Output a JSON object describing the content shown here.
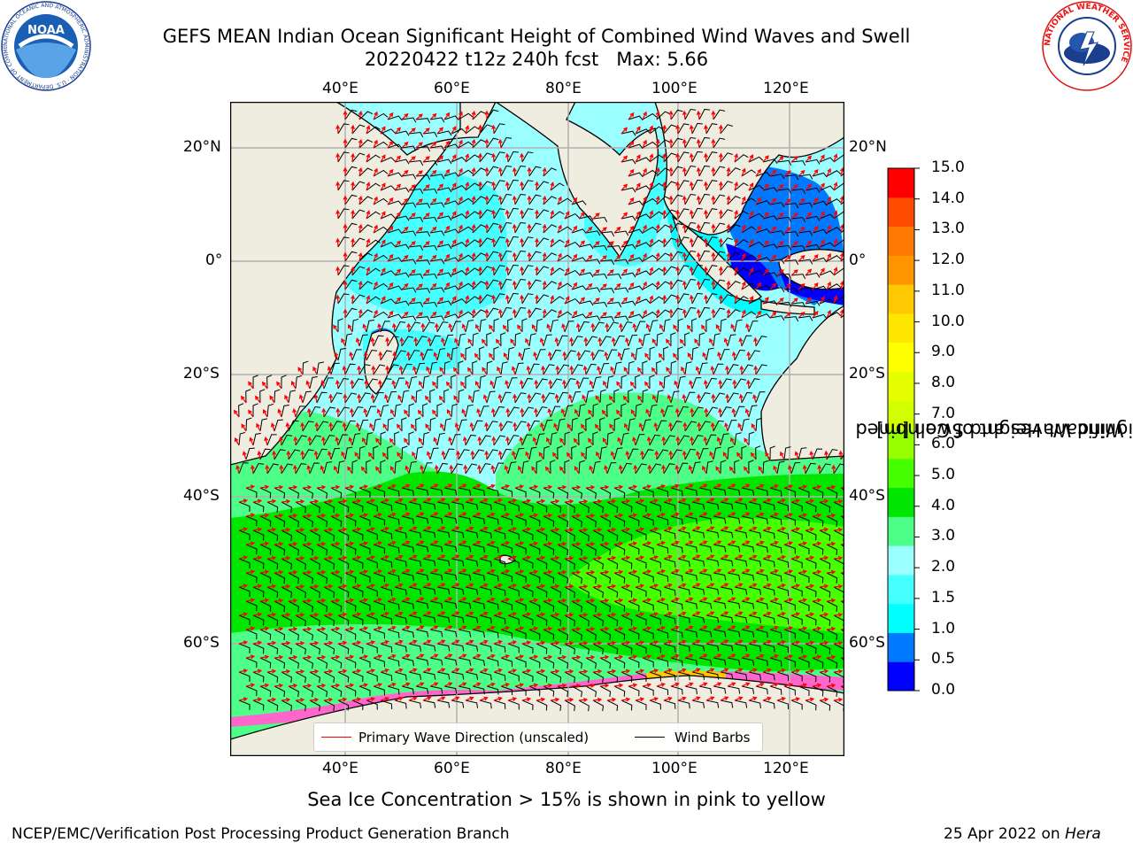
{
  "title": {
    "line1": "GEFS MEAN Indian Ocean Significant Height of Combined Wind Waves and Swell",
    "line2": "20220422 t12z 240h fcst   Max: 5.66"
  },
  "map": {
    "lon_labels": [
      "40°E",
      "60°E",
      "80°E",
      "100°E",
      "120°E"
    ],
    "lat_labels_left": [
      "20°N",
      "0°",
      "20°S",
      "40°S",
      "60°S"
    ],
    "lat_labels_right": [
      "20°N",
      "0°",
      "20°S",
      "40°S",
      "60°S"
    ],
    "land_color": "#efede0",
    "grid_color": "#b0b0b0"
  },
  "colorbar": {
    "title_line1": "Significant Height of Combined",
    "title_line2": "Wind Waves and Swell [m]",
    "ticks": [
      "15.0",
      "14.0",
      "13.0",
      "12.0",
      "11.0",
      "10.0",
      "9.0",
      "8.0",
      "7.0",
      "6.0",
      "5.0",
      "4.0",
      "3.0",
      "2.0",
      "1.5",
      "1.0",
      "0.5",
      "0.0"
    ],
    "colors_bottom_to_top": [
      "#0000ff",
      "#0078ff",
      "#00ffff",
      "#46ffff",
      "#9bffff",
      "#4dff88",
      "#00e600",
      "#46ff00",
      "#96ff00",
      "#d2ff00",
      "#e6ff00",
      "#ffff00",
      "#ffe600",
      "#ffc800",
      "#ff9600",
      "#ff7800",
      "#ff4b00",
      "#ff0000"
    ]
  },
  "legend": {
    "wave_label": "Primary Wave Direction (unscaled)",
    "barb_label": "Wind Barbs",
    "wave_color": "#ff0000",
    "barb_color": "#000000"
  },
  "ice_note": "Sea Ice Concentration > 15% is shown in pink to yellow",
  "footer": {
    "left": "NCEP/EMC/Verification Post Processing Product Generation Branch",
    "date": "25 Apr 2022 on ",
    "machine": "Hera"
  },
  "logos": {
    "noaa_text": "NOAA",
    "noaa_ring": "NATIONAL OCEANIC AND ATMOSPHERIC ADMINISTRATION · U.S. DEPARTMENT OF COMMERCE",
    "nws_ring": "NATIONAL WEATHER SERVICE"
  }
}
